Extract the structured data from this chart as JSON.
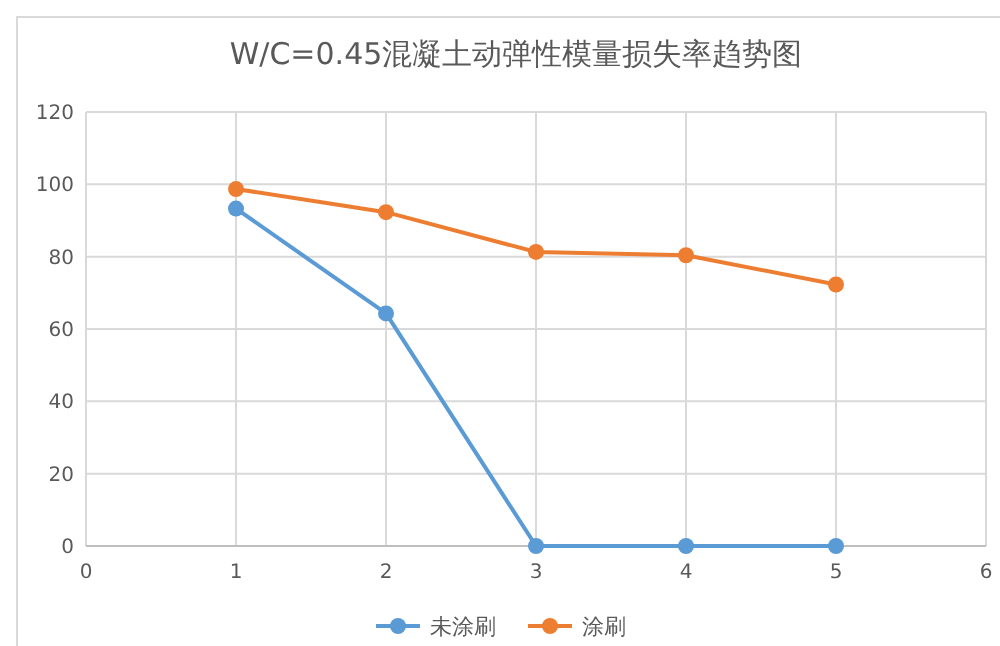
{
  "chart_data": {
    "type": "line",
    "title": "W/C=0.45混凝土动弹性模量损失率趋势图",
    "x": [
      1,
      2,
      3,
      4,
      5
    ],
    "series": [
      {
        "name": "未涂刷",
        "color": "#5b9bd5",
        "values": [
          93.3,
          64.3,
          0,
          0,
          0
        ]
      },
      {
        "name": "涂刷",
        "color": "#ed7d31",
        "values": [
          98.7,
          92.3,
          81.3,
          80.4,
          72.3
        ]
      }
    ],
    "xlim": [
      0,
      6
    ],
    "xticks": [
      0,
      1,
      2,
      3,
      4,
      5,
      6
    ],
    "ylim": [
      0,
      120
    ],
    "yticks": [
      0,
      20,
      40,
      60,
      80,
      100,
      120
    ],
    "grid": true,
    "legend": "bottom",
    "marker": "circle",
    "line_style": "solid"
  }
}
